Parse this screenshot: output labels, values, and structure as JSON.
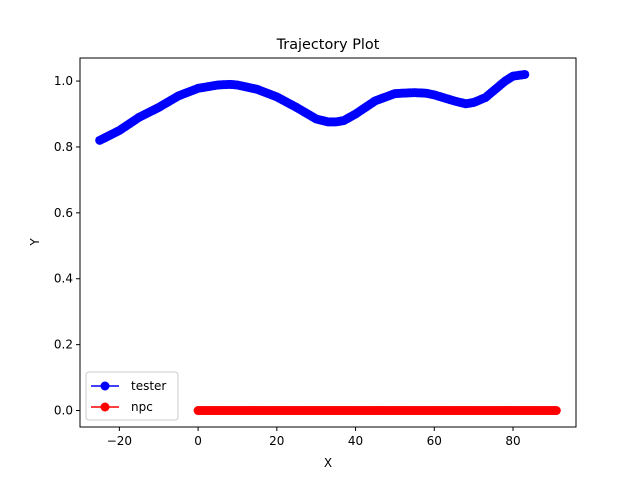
{
  "chart_data": {
    "type": "line",
    "title": "Trajectory Plot",
    "xlabel": "X",
    "ylabel": "Y",
    "xlim": [
      -30,
      96
    ],
    "ylim": [
      -0.05,
      1.07
    ],
    "xticks": [
      -20,
      0,
      20,
      40,
      60,
      80
    ],
    "xtick_labels": [
      "−20",
      "0",
      "20",
      "40",
      "60",
      "80"
    ],
    "yticks": [
      0.0,
      0.2,
      0.4,
      0.6,
      0.8,
      1.0
    ],
    "ytick_labels": [
      "0.0",
      "0.2",
      "0.4",
      "0.6",
      "0.8",
      "1.0"
    ],
    "grid": false,
    "legend": "lower-left",
    "series": [
      {
        "name": "tester",
        "color": "#0000ff",
        "marker": "circle",
        "x": [
          -25,
          -20,
          -15,
          -10,
          -5,
          0,
          5,
          8,
          10,
          15,
          20,
          25,
          30,
          33,
          35,
          37,
          40,
          45,
          50,
          55,
          58,
          60,
          65,
          68,
          70,
          73,
          75,
          78,
          80,
          83
        ],
        "y": [
          0.82,
          0.85,
          0.89,
          0.92,
          0.955,
          0.978,
          0.988,
          0.99,
          0.988,
          0.975,
          0.952,
          0.92,
          0.885,
          0.876,
          0.876,
          0.88,
          0.9,
          0.94,
          0.962,
          0.965,
          0.963,
          0.958,
          0.94,
          0.931,
          0.935,
          0.95,
          0.97,
          1.0,
          1.015,
          1.02
        ]
      },
      {
        "name": "npc",
        "color": "#ff0000",
        "marker": "circle",
        "x": [
          0,
          91
        ],
        "y": [
          0.0,
          0.0
        ]
      }
    ]
  }
}
